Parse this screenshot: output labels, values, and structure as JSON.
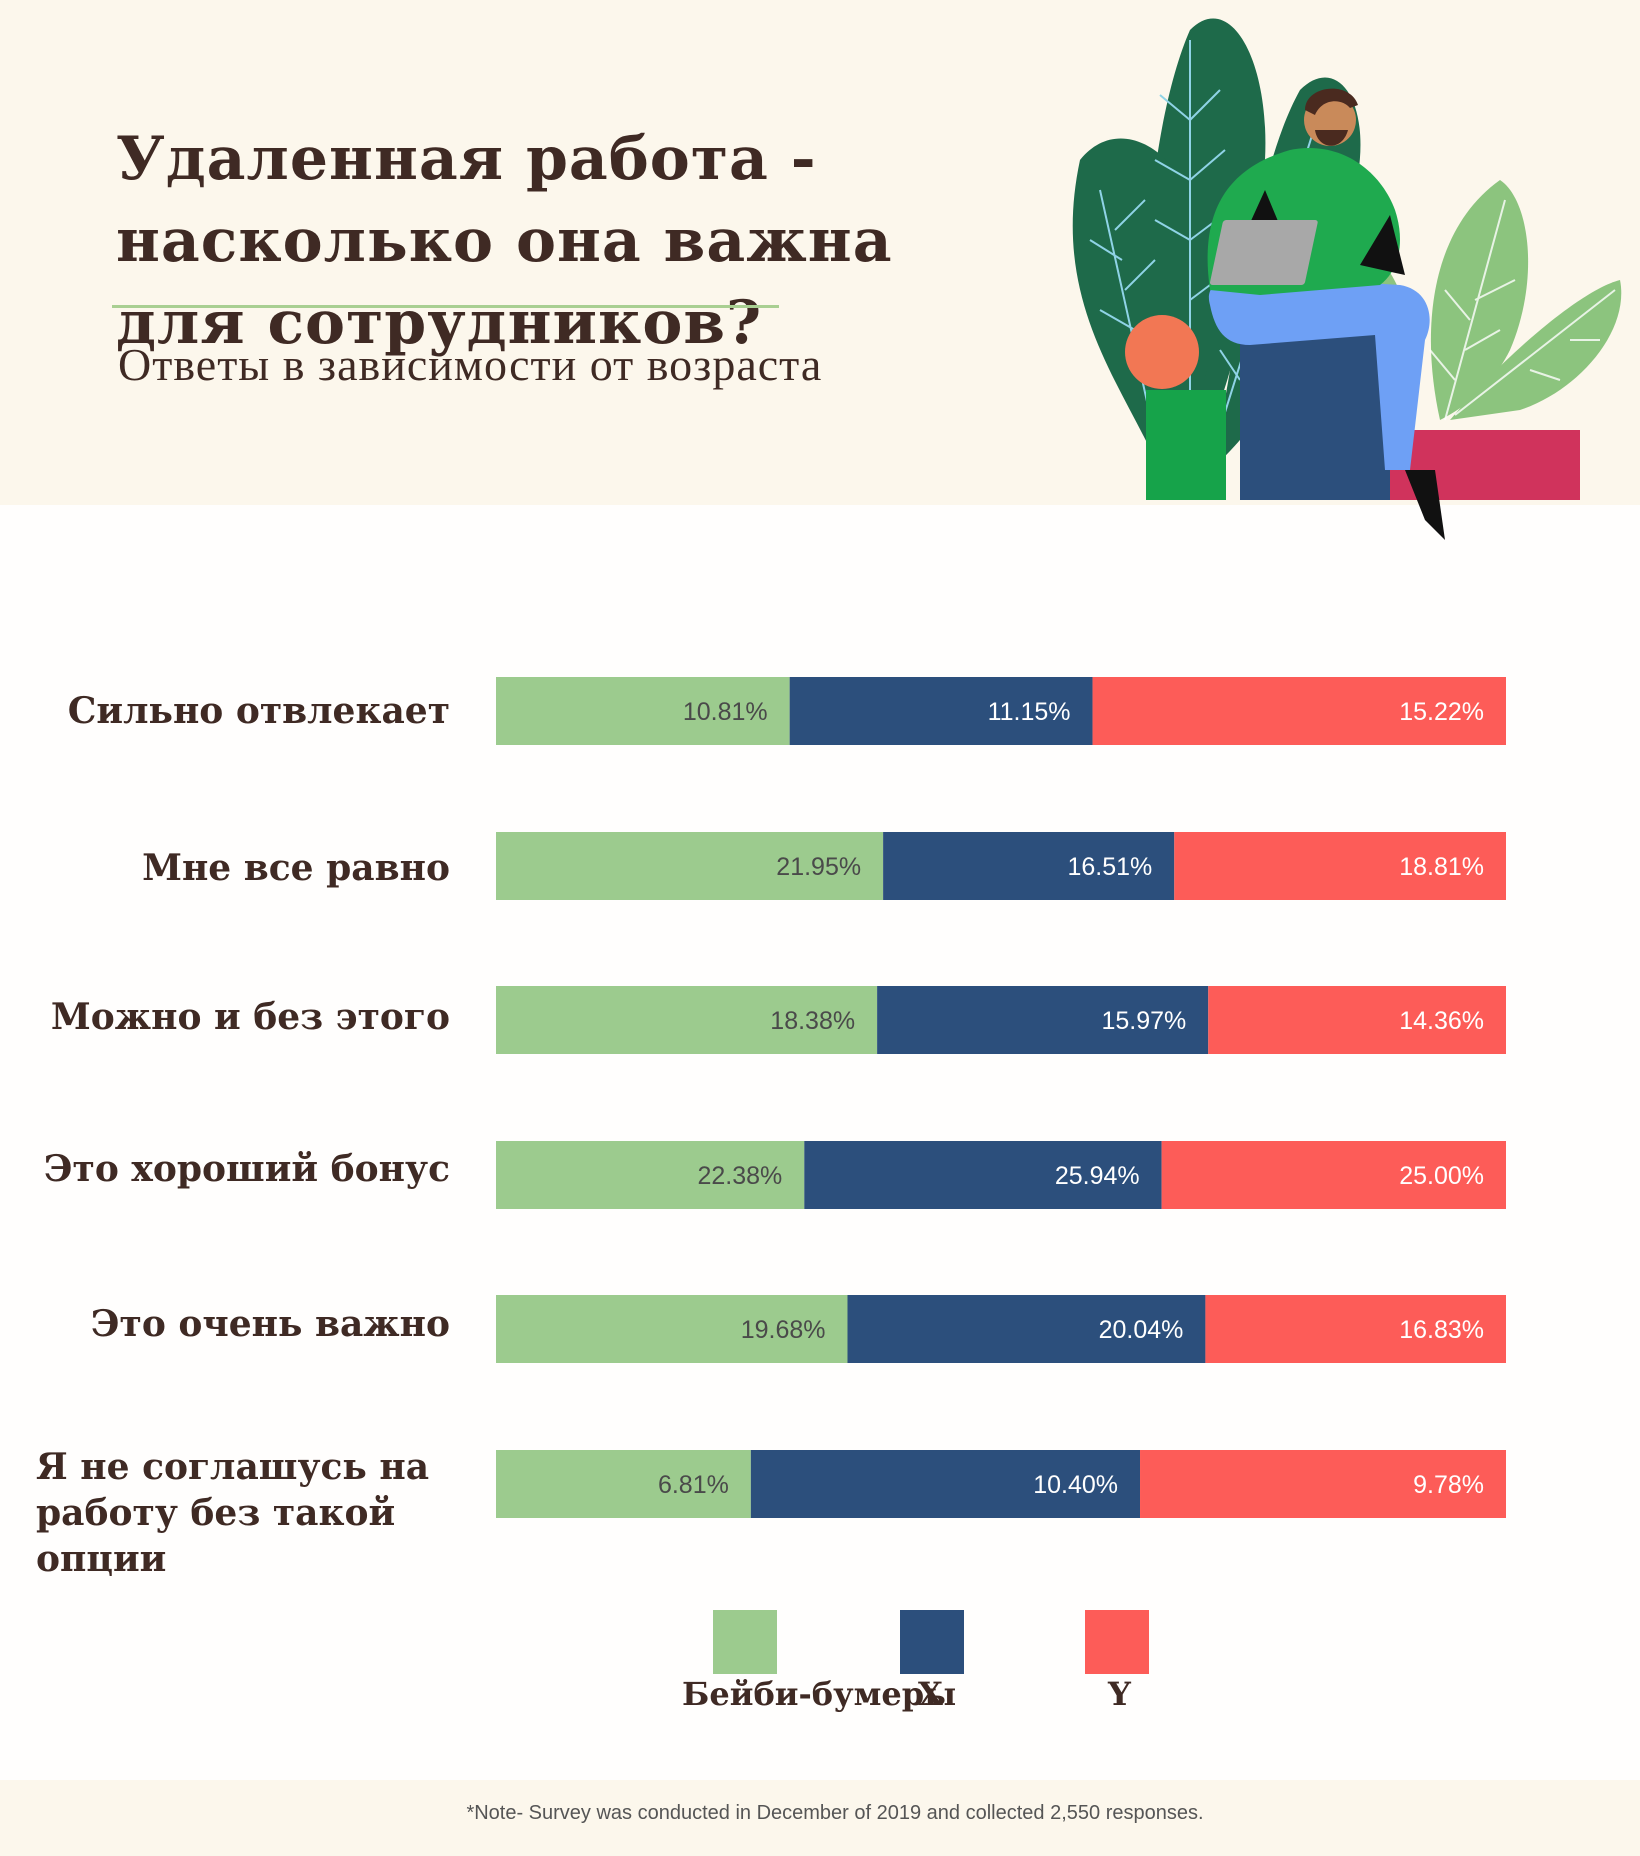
{
  "title": "Удаленная работа - насколько она важна для сотрудников?",
  "subtitle": "Ответы в зависимости от возраста",
  "footnote": "*Note- Survey was conducted in December of 2019 and collected 2,550 responses.",
  "colors": {
    "boomers": "#9ccb8e",
    "x": "#2c4f7c",
    "y": "#fd5c58",
    "text": "#3f2a24"
  },
  "legend": [
    {
      "label": "Бейби-бумеры",
      "color": "#9ccb8e"
    },
    {
      "label": "X",
      "color": "#2c4f7c"
    },
    {
      "label": "Y",
      "color": "#fd5c58"
    }
  ],
  "chart_data": {
    "type": "bar",
    "stacked": "percent",
    "orientation": "horizontal",
    "categories": [
      "Сильно отвлекает",
      "Мне все равно",
      "Можно и без этого",
      "Это хороший бонус",
      "Это очень важно",
      "Я не соглашусь на работу без такой опции"
    ],
    "series": [
      {
        "name": "Бейби-бумеры",
        "values": [
          10.81,
          21.95,
          18.38,
          22.38,
          19.68,
          6.81
        ],
        "labels": [
          "10.81%",
          "21.95%",
          "18.38%",
          "22.38%",
          "19.68%",
          "6.81%"
        ]
      },
      {
        "name": "X",
        "values": [
          11.15,
          16.51,
          15.97,
          25.94,
          20.04,
          10.4
        ],
        "labels": [
          "11.15%",
          "16.51%",
          "15.97%",
          "25.94%",
          "20.04%",
          "10.40%"
        ]
      },
      {
        "name": "Y",
        "values": [
          15.22,
          18.81,
          14.36,
          25.0,
          16.83,
          9.78
        ],
        "labels": [
          "15.22%",
          "18.81%",
          "14.36%",
          "25.00%",
          "16.83%",
          "9.78%"
        ]
      }
    ],
    "legend_position": "bottom",
    "grid": false
  }
}
